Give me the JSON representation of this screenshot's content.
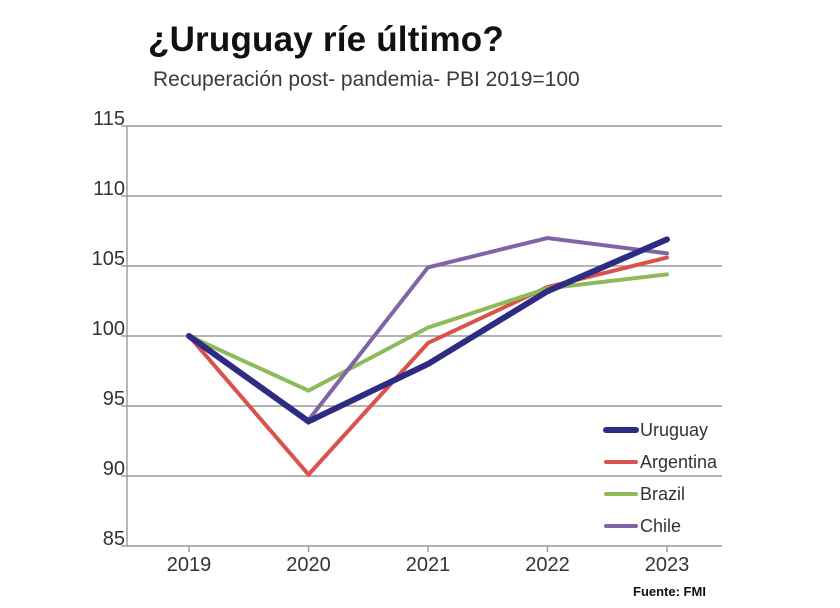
{
  "chart_data": {
    "type": "line",
    "title": "¿Uruguay ríe último?",
    "subtitle": "Recuperación post- pandemia- PBI 2019=100",
    "source": "Fuente: FMI",
    "xlabel": "",
    "ylabel": "",
    "x": [
      "2019",
      "2020",
      "2021",
      "2022",
      "2023"
    ],
    "ylim": [
      85,
      115
    ],
    "yticks": [
      85,
      90,
      95,
      100,
      105,
      110,
      115
    ],
    "grid": true,
    "legend_position": "bottom-right",
    "series": [
      {
        "name": "Uruguay",
        "values": [
          100,
          93.9,
          98.0,
          103.2,
          106.9
        ],
        "color": "#2e2b83",
        "width": 6
      },
      {
        "name": "Argentina",
        "values": [
          100,
          90.1,
          99.5,
          103.5,
          105.6
        ],
        "color": "#d9524c",
        "width": 4
      },
      {
        "name": "Brazil",
        "values": [
          100,
          96.1,
          100.6,
          103.4,
          104.4
        ],
        "color": "#8dbb59",
        "width": 4
      },
      {
        "name": "Chile",
        "values": [
          100,
          94.0,
          104.9,
          107.0,
          105.9
        ],
        "color": "#8064a8",
        "width": 4
      }
    ]
  }
}
